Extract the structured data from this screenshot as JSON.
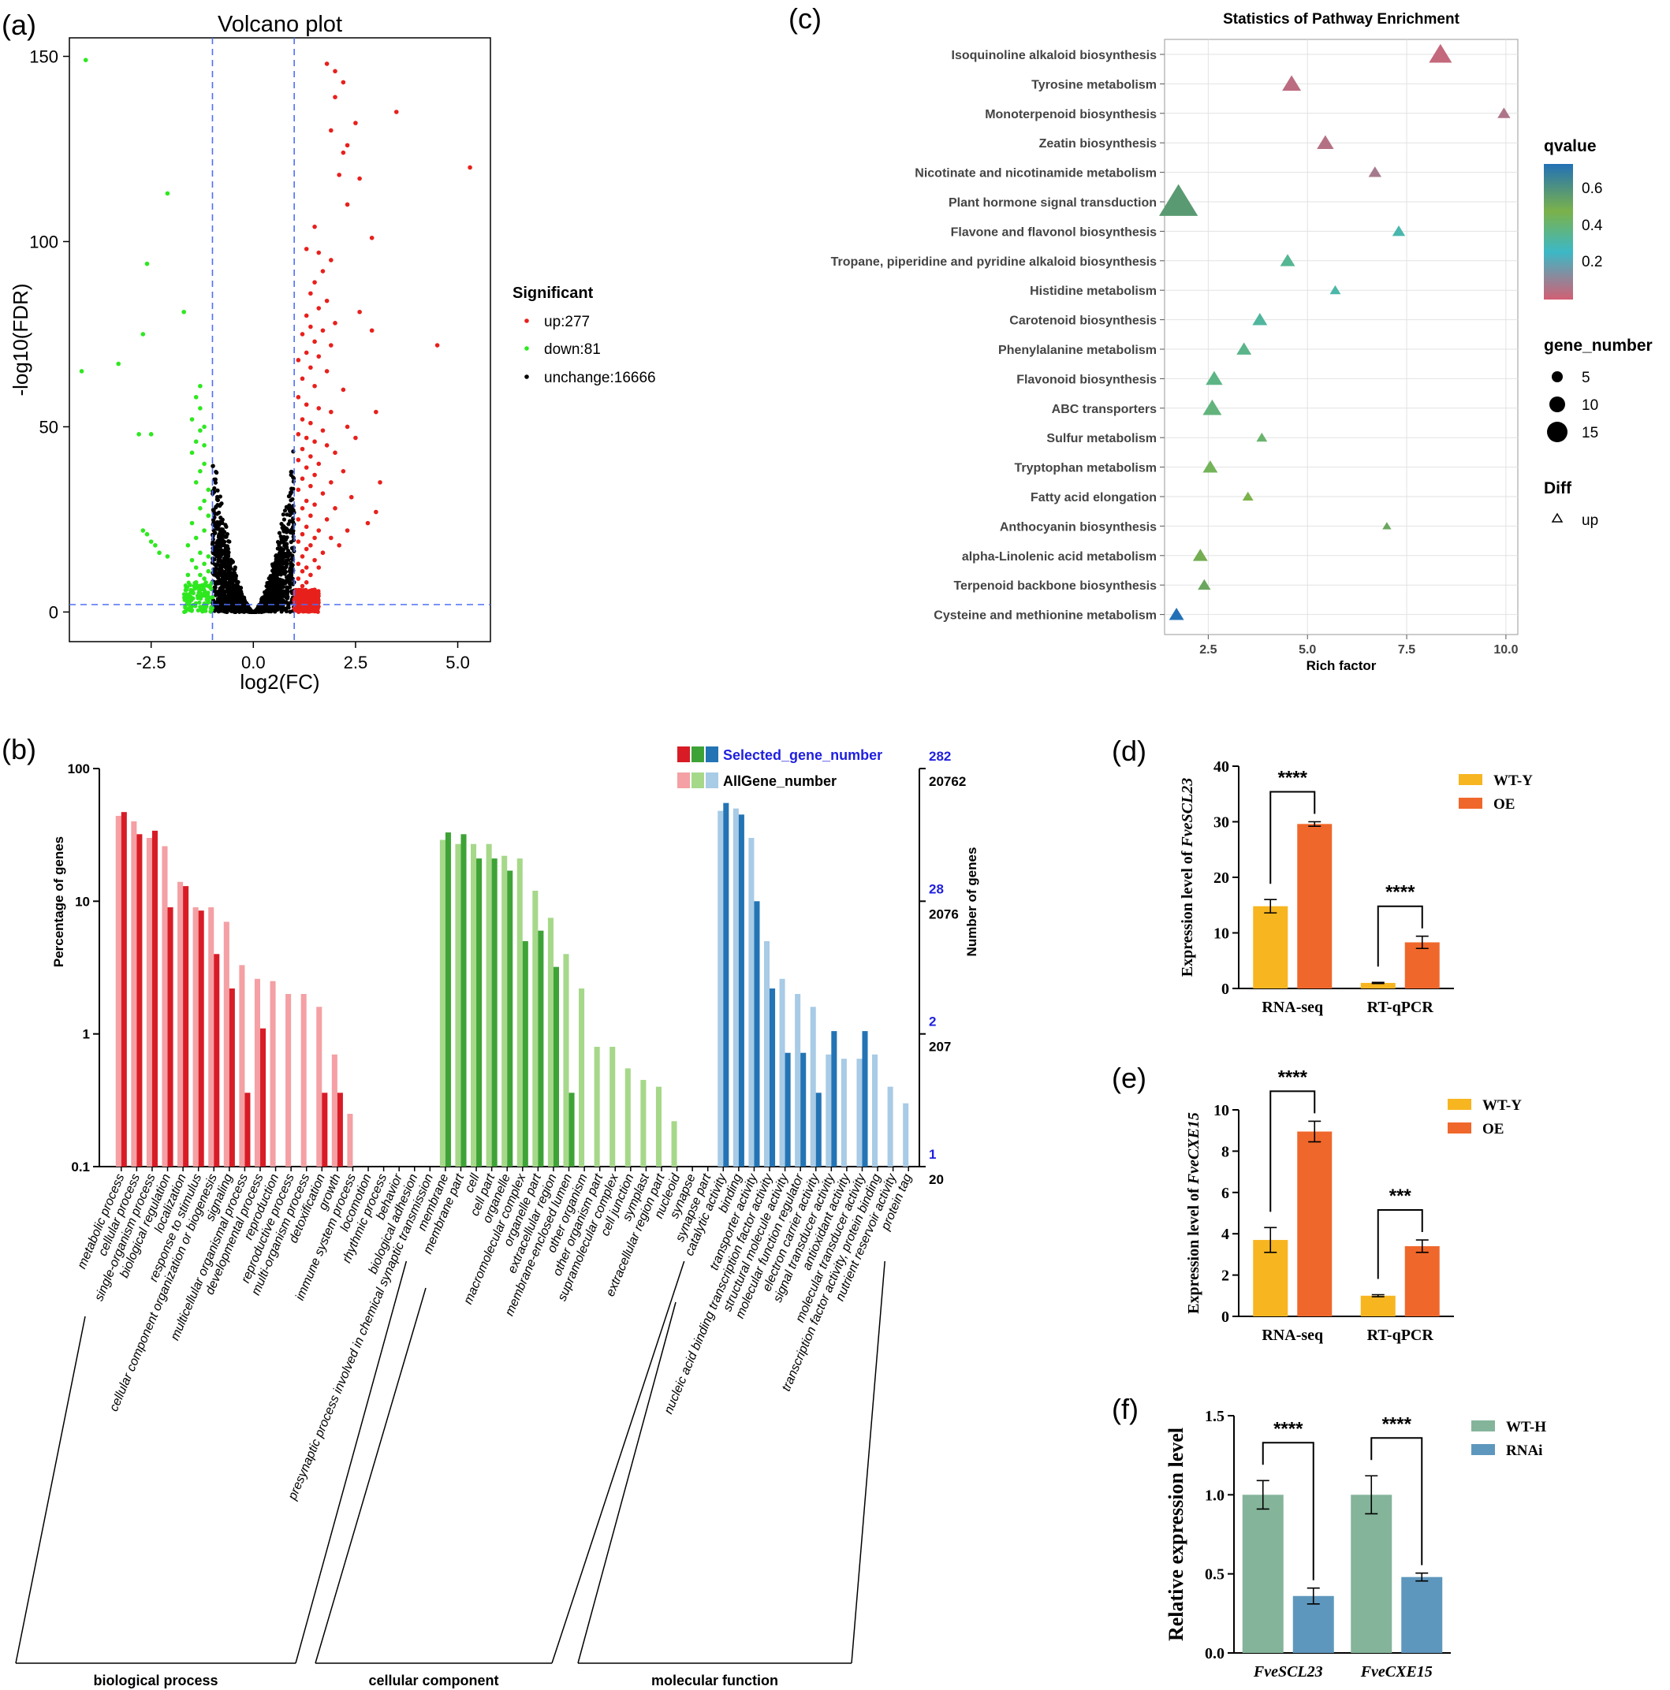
{
  "colors": {
    "up": "#e8201c",
    "down": "#2ee81f",
    "unchange": "#000000",
    "guide": "#4f6ef7",
    "bp_sel": "#d81c26",
    "bp_all": "#f4a0a4",
    "cc_sel": "#3ea336",
    "cc_all": "#a6d889",
    "mf_sel": "#2374b4",
    "mf_all": "#a8cbe6",
    "wt_y": "#f7b520",
    "oe": "#f0672b",
    "wt_h": "#84b49a",
    "rnai": "#5e97bd",
    "blue_text": "#1f1fe0"
  },
  "panels": {
    "a": "(a)",
    "b": "(b)",
    "c": "(c)",
    "d": "(d)",
    "e": "(e)",
    "f": "(f)"
  },
  "chart_data": [
    {
      "id": "volcano",
      "type": "scatter",
      "title": "Volcano plot",
      "xlabel": "log2(FC)",
      "ylabel": "-log10(FDR)",
      "xlim": [
        -4.5,
        5.8
      ],
      "ylim": [
        -8,
        155
      ],
      "xticks": [
        -2.5,
        0.0,
        2.5,
        5.0
      ],
      "xtick_labels": [
        "-2.5",
        "0.0",
        "2.5",
        "5.0"
      ],
      "yticks": [
        0,
        50,
        100,
        150
      ],
      "ytick_labels": [
        "0",
        "50",
        "100",
        "150"
      ],
      "thresholds": {
        "log2fc": [
          -1,
          1
        ],
        "neg_log10_fdr": 2
      },
      "legend": {
        "title": "Significant",
        "entries": [
          "up:277",
          "down:81",
          "unchange:16666"
        ],
        "position": "right"
      },
      "up_points": [
        [
          1.8,
          148
        ],
        [
          2.0,
          146
        ],
        [
          2.2,
          143
        ],
        [
          2.0,
          139
        ],
        [
          3.5,
          135
        ],
        [
          2.5,
          132
        ],
        [
          1.9,
          130
        ],
        [
          2.3,
          126
        ],
        [
          2.2,
          124
        ],
        [
          5.3,
          120
        ],
        [
          2.1,
          118
        ],
        [
          2.6,
          117
        ],
        [
          2.3,
          110
        ],
        [
          1.5,
          104
        ],
        [
          2.9,
          101
        ],
        [
          1.3,
          98
        ],
        [
          1.6,
          97
        ],
        [
          1.9,
          95
        ],
        [
          1.7,
          92
        ],
        [
          1.5,
          89
        ],
        [
          1.4,
          86
        ],
        [
          1.8,
          84
        ],
        [
          1.6,
          82
        ],
        [
          2.6,
          81
        ],
        [
          1.3,
          80
        ],
        [
          2.0,
          78
        ],
        [
          1.4,
          77
        ],
        [
          1.7,
          76
        ],
        [
          2.9,
          76
        ],
        [
          1.2,
          75
        ],
        [
          1.5,
          73
        ],
        [
          1.9,
          72
        ],
        [
          4.5,
          72
        ],
        [
          1.3,
          70
        ],
        [
          1.6,
          69
        ],
        [
          1.1,
          68
        ],
        [
          1.4,
          66
        ],
        [
          1.8,
          65
        ],
        [
          1.2,
          63
        ],
        [
          1.5,
          61
        ],
        [
          2.2,
          60
        ],
        [
          1.1,
          58
        ],
        [
          1.3,
          56
        ],
        [
          1.6,
          55
        ],
        [
          1.9,
          54
        ],
        [
          3.0,
          54
        ],
        [
          1.2,
          52
        ],
        [
          1.4,
          51
        ],
        [
          2.3,
          50
        ],
        [
          1.7,
          49
        ],
        [
          1.1,
          48
        ],
        [
          1.3,
          47
        ],
        [
          2.5,
          47
        ],
        [
          1.5,
          46
        ],
        [
          1.8,
          45
        ],
        [
          1.2,
          44
        ],
        [
          2.0,
          43
        ],
        [
          1.4,
          42
        ],
        [
          1.1,
          41
        ],
        [
          1.6,
          40
        ],
        [
          1.3,
          39
        ],
        [
          2.2,
          38
        ],
        [
          1.5,
          37
        ],
        [
          1.2,
          36
        ],
        [
          1.9,
          35
        ],
        [
          3.1,
          35
        ],
        [
          1.4,
          34
        ],
        [
          1.1,
          33
        ],
        [
          1.7,
          32
        ],
        [
          2.4,
          31
        ],
        [
          1.3,
          30
        ],
        [
          1.5,
          29
        ],
        [
          1.2,
          28
        ],
        [
          2.0,
          28
        ],
        [
          3.0,
          27
        ],
        [
          1.4,
          26
        ],
        [
          1.1,
          25
        ],
        [
          1.8,
          25
        ],
        [
          2.8,
          24
        ],
        [
          1.3,
          23
        ],
        [
          1.6,
          22
        ],
        [
          2.3,
          22
        ],
        [
          1.2,
          21
        ],
        [
          1.5,
          20
        ],
        [
          1.9,
          20
        ],
        [
          1.1,
          19
        ],
        [
          1.4,
          18
        ],
        [
          2.1,
          18
        ],
        [
          1.3,
          17
        ],
        [
          1.7,
          16
        ],
        [
          1.2,
          15
        ],
        [
          1.5,
          14
        ],
        [
          1.1,
          13
        ],
        [
          1.3,
          12
        ],
        [
          1.6,
          12
        ],
        [
          1.2,
          11
        ],
        [
          1.4,
          10
        ],
        [
          1.1,
          9
        ],
        [
          1.3,
          8
        ],
        [
          1.2,
          7
        ],
        [
          1.5,
          6
        ],
        [
          1.1,
          5
        ],
        [
          1.3,
          4
        ],
        [
          1.0,
          3
        ]
      ],
      "down_points": [
        [
          -4.1,
          149
        ],
        [
          -2.1,
          113
        ],
        [
          -2.6,
          94
        ],
        [
          -1.7,
          81
        ],
        [
          -2.7,
          75
        ],
        [
          -3.3,
          67
        ],
        [
          -4.2,
          65
        ],
        [
          -1.3,
          61
        ],
        [
          -1.4,
          58
        ],
        [
          -1.3,
          55
        ],
        [
          -1.5,
          52
        ],
        [
          -1.2,
          50
        ],
        [
          -1.3,
          49
        ],
        [
          -2.8,
          48
        ],
        [
          -2.5,
          48
        ],
        [
          -1.4,
          46
        ],
        [
          -1.2,
          45
        ],
        [
          -1.5,
          43
        ],
        [
          -1.2,
          40
        ],
        [
          -1.3,
          38
        ],
        [
          -1.4,
          35
        ],
        [
          -1.1,
          33
        ],
        [
          -1.2,
          30
        ],
        [
          -1.3,
          28
        ],
        [
          -1.1,
          26
        ],
        [
          -1.5,
          24
        ],
        [
          -2.7,
          22
        ],
        [
          -2.6,
          21
        ],
        [
          -2.5,
          19
        ],
        [
          -2.4,
          18
        ],
        [
          -1.2,
          22
        ],
        [
          -1.4,
          20
        ],
        [
          -1.6,
          18
        ],
        [
          -1.3,
          16
        ],
        [
          -1.1,
          15
        ],
        [
          -2.3,
          16
        ],
        [
          -2.1,
          15
        ],
        [
          -1.5,
          14
        ],
        [
          -1.2,
          13
        ],
        [
          -1.4,
          12
        ],
        [
          -1.1,
          11
        ],
        [
          -1.3,
          10
        ],
        [
          -1.6,
          10
        ],
        [
          -1.2,
          9
        ],
        [
          -1.4,
          8
        ],
        [
          -1.1,
          7
        ],
        [
          -1.3,
          6
        ],
        [
          -1.2,
          5
        ],
        [
          -1.0,
          4
        ]
      ]
    },
    {
      "id": "go",
      "type": "bar",
      "categories": [
        "metabolic process",
        "cellular process",
        "single-organism process",
        "biological regulation",
        "localization",
        "response to stimulus",
        "cellular component organization or biogenesis",
        "signaling",
        "multicellular organismal process",
        "developmental process",
        "reproduction",
        "reproductive process",
        "multi-organism process",
        "detoxification",
        "growth",
        "immune system process",
        "locomotion",
        "rhythmic process",
        "behavior",
        "biological adhesion",
        "presynaptic process involved in chemical synaptic transmission",
        "membrane",
        "membrane part",
        "cell",
        "cell part",
        "organelle",
        "macromolecular complex",
        "organelle part",
        "extracellular region",
        "membrane-enclosed lumen",
        "other organism",
        "other organism part",
        "supramolecular complex",
        "cell junction",
        "symplast",
        "extracellular region part",
        "nucleoid",
        "synapse",
        "synapse part",
        "catalytic activity",
        "binding",
        "transporter activity",
        "nucleic acid binding transcription factor activity",
        "structural molecule activity",
        "molecular function regulator",
        "electron carrier activity",
        "signal transducer activity",
        "antioxidant activity",
        "molecular transducer activity",
        "transcription factor activity, protein binding",
        "nutrient reservoir activity",
        "protein tag"
      ],
      "groups": [
        {
          "name": "biological process",
          "start": 0,
          "end": 20
        },
        {
          "name": "cellular component",
          "start": 21,
          "end": 38
        },
        {
          "name": "molecular function",
          "start": 39,
          "end": 51
        }
      ],
      "series": [
        {
          "name": "AllGene_number",
          "values": [
            44,
            40,
            30,
            26,
            14,
            9,
            9,
            7,
            3.3,
            2.6,
            2.5,
            2.0,
            2.0,
            1.6,
            0.7,
            0.25,
            0,
            0,
            0,
            0,
            0,
            29,
            27,
            27,
            27,
            22,
            21,
            12,
            7.5,
            4,
            2.2,
            0.8,
            0.8,
            0.55,
            0.45,
            0.4,
            0.22,
            0,
            0,
            48,
            50,
            30,
            5,
            2.6,
            2.0,
            1.6,
            0.7,
            0.65,
            0.65,
            0.7,
            0.4,
            0.3
          ]
        },
        {
          "name": "Selected_gene_number",
          "values": [
            47,
            32,
            34,
            9,
            13,
            8.5,
            4,
            2.2,
            0.36,
            1.1,
            0,
            0,
            0,
            0.36,
            0.36,
            0,
            0,
            0,
            0,
            0,
            0,
            33,
            32,
            21,
            21,
            17,
            5,
            6,
            3.2,
            0.36,
            0,
            0,
            0,
            0,
            0,
            0,
            0,
            0,
            0,
            55,
            45,
            10,
            2.2,
            0.72,
            0.72,
            0.36,
            1.05,
            0,
            1.05,
            0,
            0,
            0
          ]
        }
      ],
      "ylabel": "Percentage of genes",
      "y2label": "Number of genes",
      "ylim": [
        0.1,
        100
      ],
      "yticks": [
        "100",
        "10",
        "1",
        "0.1"
      ],
      "right_selected_ticks": [
        "282",
        "28",
        "2",
        "1"
      ],
      "right_all_ticks": [
        "20762",
        "2076",
        "207",
        "20"
      ],
      "legend": {
        "selected": "Selected_gene_number",
        "all": "AllGene_number",
        "position": "top-right"
      },
      "scale": "log"
    },
    {
      "id": "kegg",
      "type": "scatter",
      "title": "Statistics of Pathway Enrichment",
      "xlabel": "Rich factor",
      "xlim": [
        1.4,
        10.3
      ],
      "xticks": [
        "2.5",
        "5.0",
        "7.5",
        "10.0"
      ],
      "categories": [
        "Isoquinoline alkaloid biosynthesis",
        "Tyrosine metabolism",
        "Monoterpenoid biosynthesis",
        "Zeatin biosynthesis",
        "Nicotinate and nicotinamide metabolism",
        "Plant hormone signal transduction",
        "Flavone and flavonol biosynthesis",
        "Tropane, piperidine and pyridine alkaloid biosynthesis",
        "Histidine metabolism",
        "Carotenoid biosynthesis",
        "Phenylalanine metabolism",
        "Flavonoid biosynthesis",
        "ABC transporters",
        "Sulfur metabolism",
        "Tryptophan metabolism",
        "Fatty acid elongation",
        "Anthocyanin biosynthesis",
        "alpha-Linolenic acid metabolism",
        "Terpenoid backbone biosynthesis",
        "Cysteine and methionine metabolism"
      ],
      "rich_factor": [
        8.35,
        4.6,
        9.95,
        5.45,
        6.7,
        1.75,
        7.3,
        4.5,
        5.7,
        3.8,
        3.4,
        2.65,
        2.6,
        3.85,
        2.55,
        3.5,
        7.0,
        2.3,
        2.4,
        1.7
      ],
      "gene_number": [
        8,
        6,
        3,
        5,
        3,
        16,
        3,
        4,
        2,
        4,
        4,
        5,
        6,
        2,
        4,
        2,
        1,
        4,
        3,
        4
      ],
      "qvalue": [
        0.02,
        0.03,
        0.05,
        0.04,
        0.06,
        0.55,
        0.25,
        0.3,
        0.26,
        0.28,
        0.32,
        0.33,
        0.35,
        0.38,
        0.42,
        0.45,
        0.5,
        0.47,
        0.5,
        0.72
      ],
      "legend": {
        "qvalue_title": "qvalue",
        "qvalue_ticks": [
          "0.6",
          "0.4",
          "0.2"
        ],
        "gene_title": "gene_number",
        "gene_ticks": [
          "5",
          "10",
          "15"
        ],
        "diff_title": "Diff",
        "diff_label": "up",
        "position": "right"
      }
    },
    {
      "id": "d",
      "type": "bar",
      "ylabel_prefix": "Expression level of ",
      "ylabel_gene": "FveSCL23",
      "categories": [
        "RNA-seq",
        "RT-qPCR"
      ],
      "series": [
        {
          "name": "WT-Y",
          "values": [
            14.8,
            1.0
          ],
          "err": [
            1.2,
            0.1
          ]
        },
        {
          "name": "OE",
          "values": [
            29.6,
            8.3
          ],
          "err": [
            0.4,
            1.1
          ]
        }
      ],
      "ylim": [
        0,
        40
      ],
      "yticks": [
        "0",
        "10",
        "20",
        "30",
        "40"
      ],
      "significance": [
        "****",
        "****"
      ],
      "legend_position": "top-right"
    },
    {
      "id": "e",
      "type": "bar",
      "ylabel_prefix": "Expression level of ",
      "ylabel_gene": "FveCXE15",
      "categories": [
        "RNA-seq",
        "RT-qPCR"
      ],
      "series": [
        {
          "name": "WT-Y",
          "values": [
            3.7,
            1.0
          ],
          "err": [
            0.6,
            0.05
          ]
        },
        {
          "name": "OE",
          "values": [
            8.95,
            3.4
          ],
          "err": [
            0.5,
            0.3
          ]
        }
      ],
      "ylim": [
        0,
        10
      ],
      "yticks": [
        "0",
        "2",
        "4",
        "6",
        "8",
        "10"
      ],
      "significance": [
        "****",
        "***"
      ],
      "legend_position": "top-right"
    },
    {
      "id": "f",
      "type": "bar",
      "ylabel": "Relative expression level",
      "categories": [
        "FveSCL23",
        "FveCXE15"
      ],
      "series": [
        {
          "name": "WT-H",
          "values": [
            1.0,
            1.0
          ],
          "err": [
            0.09,
            0.12
          ]
        },
        {
          "name": "RNAi",
          "values": [
            0.36,
            0.48
          ],
          "err": [
            0.05,
            0.025
          ]
        }
      ],
      "ylim": [
        0,
        1.5
      ],
      "yticks": [
        "0.0",
        "0.5",
        "1.0",
        "1.5"
      ],
      "significance": [
        "****",
        "****"
      ],
      "legend_position": "top-right"
    }
  ]
}
